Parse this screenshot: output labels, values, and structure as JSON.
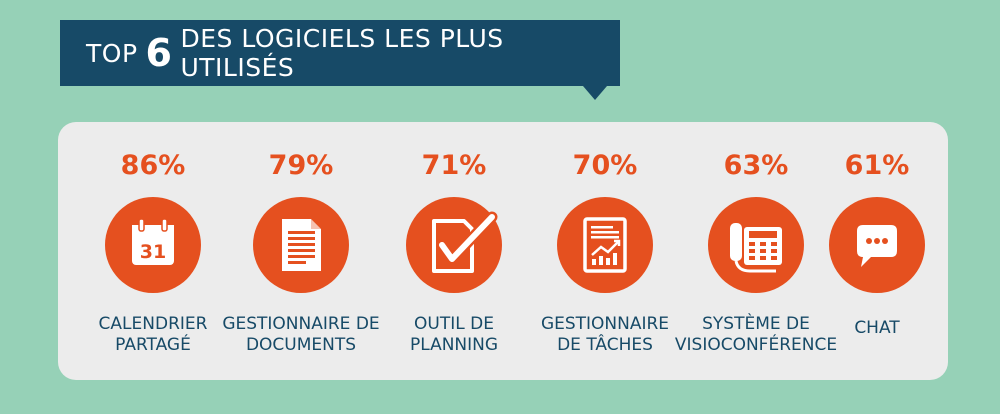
{
  "header": {
    "title_prefix": "TOP",
    "title_number": "6",
    "title_suffix": "DES LOGICIELS LES PLUS UTILISÉS"
  },
  "items": [
    {
      "percent": "86%",
      "label_line1": "CALENDRIER",
      "label_line2": "PARTAGÉ",
      "icon": "calendar-icon",
      "icon_text": "31"
    },
    {
      "percent": "79%",
      "label_line1": "GESTIONNAIRE DE",
      "label_line2": "DOCUMENTS",
      "icon": "document-icon"
    },
    {
      "percent": "71%",
      "label_line1": "OUTIL DE",
      "label_line2": "PLANNING",
      "icon": "checkmark-document-icon"
    },
    {
      "percent": "70%",
      "label_line1": "GESTIONNAIRE",
      "label_line2": "DE TÂCHES",
      "icon": "chart-report-icon"
    },
    {
      "percent": "63%",
      "label_line1": "SYSTÈME DE",
      "label_line2": "VISIOCONFÉRENCE",
      "icon": "desk-phone-icon"
    },
    {
      "percent": "61%",
      "label_line1": "CHAT",
      "label_line2": "",
      "icon": "chat-bubble-icon"
    }
  ],
  "colors": {
    "background": "#96d1b7",
    "banner": "#174a67",
    "accent": "#e5501f",
    "panel": "#ececec"
  }
}
